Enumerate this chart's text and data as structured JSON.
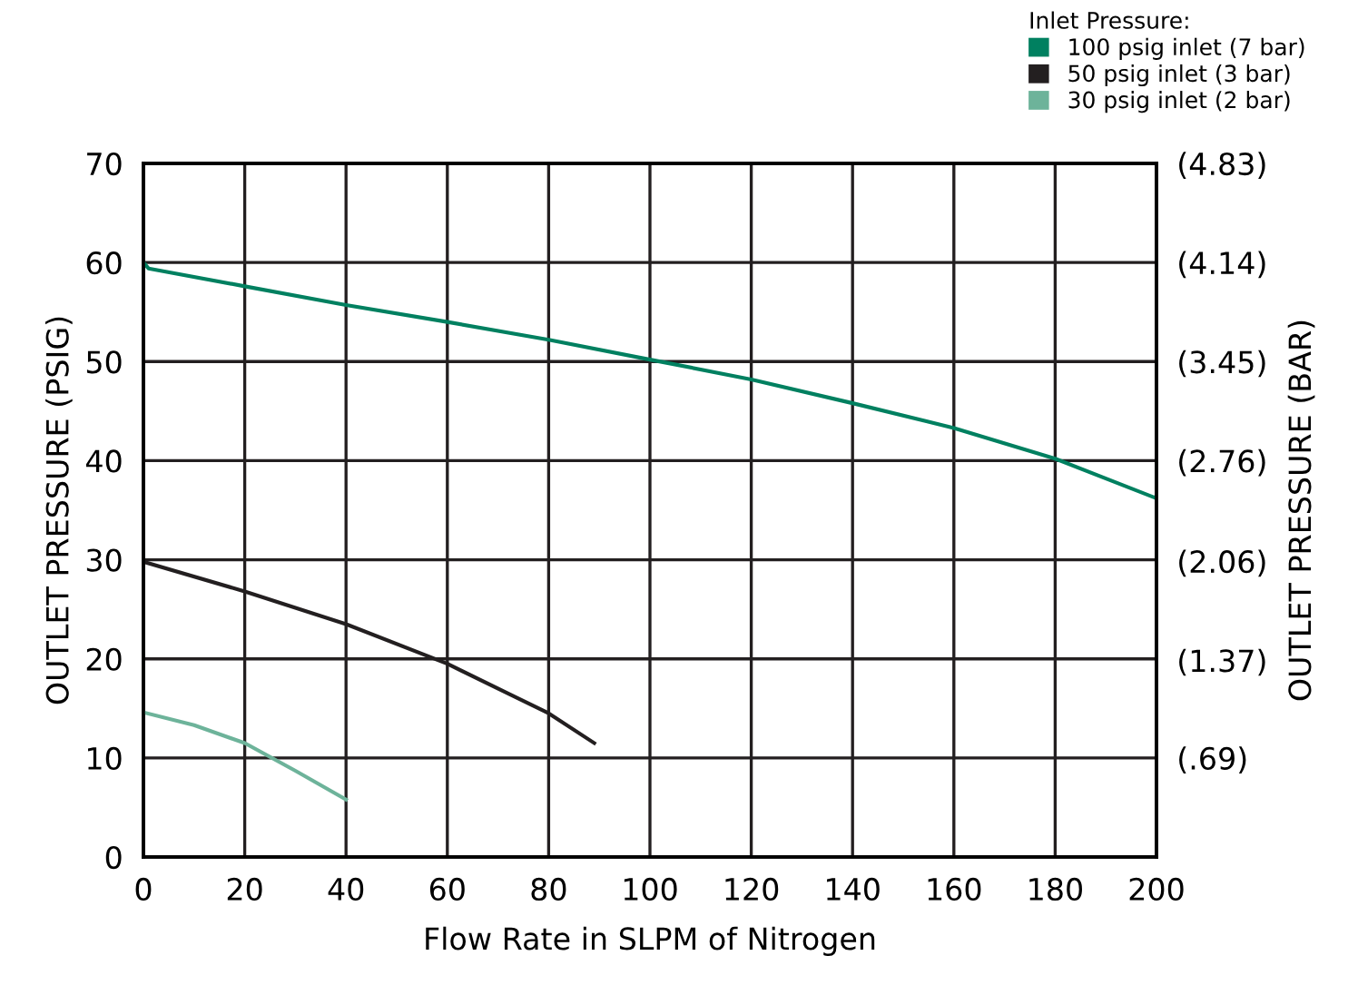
{
  "chart_data": {
    "type": "line",
    "xlabel": "Flow Rate in SLPM of Nitrogen",
    "ylabel": "OUTLET PRESSURE (PSIG)",
    "y2label": "OUTLET PRESSURE (BAR)",
    "legend_title": "Inlet Pressure:",
    "series": [
      {
        "name": "100 psig inlet (7 bar)",
        "color": "#008060",
        "x": [
          0,
          1,
          20,
          40,
          60,
          80,
          100,
          120,
          140,
          160,
          180,
          200
        ],
        "values": [
          60,
          59.4,
          57.6,
          55.7,
          54,
          52.2,
          50.2,
          48.2,
          45.8,
          43.3,
          40.2,
          36.2
        ]
      },
      {
        "name": "50 psig inlet (3 bar)",
        "color": "#231f20",
        "x": [
          0,
          20,
          40,
          60,
          80,
          89
        ],
        "values": [
          29.8,
          26.8,
          23.5,
          19.5,
          14.5,
          11.5
        ]
      },
      {
        "name": "30 psig inlet (2 bar)",
        "color": "#6db39a",
        "x": [
          0,
          10,
          20,
          30,
          40
        ],
        "values": [
          14.6,
          13.3,
          11.5,
          8.7,
          5.8
        ]
      }
    ],
    "xlim": [
      0,
      200
    ],
    "xticks": [
      0,
      20,
      40,
      60,
      80,
      100,
      120,
      140,
      160,
      180,
      200
    ],
    "ylim": [
      0,
      70
    ],
    "yticks": [
      0,
      10,
      20,
      30,
      40,
      50,
      60,
      70
    ],
    "y2lim": [
      0,
      4.83
    ],
    "y2ticks": [
      {
        "value": 0,
        "label": null
      },
      {
        "value": 0.69,
        "label": "(.69)"
      },
      {
        "value": 1.37,
        "label": "(1.37)"
      },
      {
        "value": 2.06,
        "label": "(2.06)"
      },
      {
        "value": 2.76,
        "label": "(2.76)"
      },
      {
        "value": 3.45,
        "label": "(3.45)"
      },
      {
        "value": 4.14,
        "label": "(4.14)"
      },
      {
        "value": 4.83,
        "label": "(4.83)"
      }
    ],
    "grid": true,
    "legend": "top right",
    "marker": "none",
    "line_style": "solid"
  }
}
